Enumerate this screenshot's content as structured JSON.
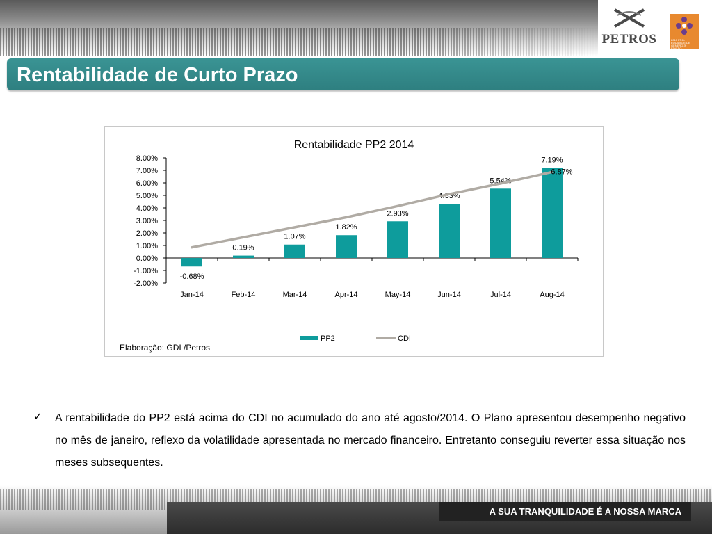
{
  "header": {
    "logo_text": "PETROS",
    "badge_text": "2010 PRÓ-EQUIDADE DE GÊNERO 3ª EDIÇÃO"
  },
  "title": "Rentabilidade de Curto Prazo",
  "chart_data": {
    "type": "bar",
    "title": "Rentabilidade PP2 2014",
    "categories": [
      "Jan-14",
      "Feb-14",
      "Mar-14",
      "Apr-14",
      "May-14",
      "Jun-14",
      "Jul-14",
      "Aug-14"
    ],
    "ytick_labels": [
      "8.00%",
      "7.00%",
      "6.00%",
      "5.00%",
      "4.00%",
      "3.00%",
      "2.00%",
      "1.00%",
      "0.00%",
      "-1.00%",
      "-2.00%"
    ],
    "ylim": [
      -2,
      8
    ],
    "series": [
      {
        "name": "PP2",
        "type": "bar",
        "color": "#0e9c9c",
        "values": [
          -0.68,
          0.19,
          1.07,
          1.82,
          2.93,
          4.33,
          5.54,
          7.19
        ],
        "labels": [
          "-0.68%",
          "0.19%",
          "1.07%",
          "1.82%",
          "2.93%",
          "4.33%",
          "5.54%",
          "7.19%"
        ]
      },
      {
        "name": "CDI",
        "type": "line",
        "color": "#b0aba4",
        "values": [
          0.85,
          1.65,
          2.45,
          3.25,
          4.15,
          5.1,
          5.95,
          6.87
        ],
        "end_label": "6.87%"
      }
    ],
    "legend_position": "bottom",
    "grid": false,
    "credit": "Elaboração: GDI /Petros"
  },
  "bullet": {
    "text": "A rentabilidade do PP2 está acima do CDI no acumulado do ano até agosto/2014. O Plano apresentou desempenho negativo no mês de janeiro, reflexo da volatilidade apresentada no mercado financeiro. Entretanto conseguiu reverter essa situação nos meses subsequentes."
  },
  "footer": {
    "slogan": "A SUA TRANQUILIDADE É A NOSSA MARCA"
  }
}
